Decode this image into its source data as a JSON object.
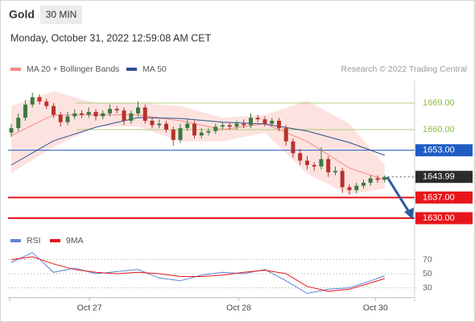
{
  "chart_data": [
    {
      "type": "candlestick",
      "title": "Gold",
      "timeframe": "30 MIN",
      "subtitle": "Monday, October 31, 2022 12:59:08 AM CET",
      "source": "Research © 2022 Trading Central",
      "legend": "top-left",
      "up_color": "#3d7a3d",
      "down_color": "#b8322c",
      "ylim": [
        1626,
        1675
      ],
      "open": [
        1659.0,
        1660.5,
        1664.0,
        1668.5,
        1671.0,
        1669.5,
        1668.0,
        1665.0,
        1662.5,
        1664.5,
        1665.5,
        1665.0,
        1666.0,
        1664.5,
        1665.5,
        1667.0,
        1666.5,
        1663.0,
        1665.5,
        1667.5,
        1663.0,
        1661.5,
        1662.0,
        1660.0,
        1656.5,
        1660.5,
        1662.0,
        1658.0,
        1659.0,
        1659.5,
        1661.0,
        1661.5,
        1661.0,
        1662.0,
        1661.5,
        1664.0,
        1663.5,
        1662.0,
        1663.0,
        1660.5,
        1656.0,
        1652.0,
        1649.5,
        1648.0,
        1647.5,
        1650.0,
        1645.5,
        1646.0,
        1640.5,
        1639.5,
        1641.0,
        1642.0,
        1643.5,
        1643.0
      ],
      "high": [
        1662.0,
        1665.5,
        1670.0,
        1672.5,
        1672.0,
        1670.5,
        1669.0,
        1666.0,
        1666.0,
        1667.0,
        1666.5,
        1667.5,
        1667.0,
        1666.5,
        1668.5,
        1668.0,
        1667.5,
        1666.5,
        1669.5,
        1668.5,
        1664.0,
        1663.5,
        1663.0,
        1661.0,
        1662.0,
        1663.5,
        1663.0,
        1660.5,
        1660.5,
        1662.0,
        1662.5,
        1662.5,
        1663.0,
        1663.5,
        1665.5,
        1665.0,
        1664.5,
        1664.0,
        1664.0,
        1661.5,
        1657.0,
        1653.5,
        1651.0,
        1649.0,
        1654.0,
        1651.0,
        1647.5,
        1647.0,
        1641.5,
        1642.0,
        1643.0,
        1644.5,
        1644.5,
        1644.5
      ],
      "low": [
        1657.5,
        1659.5,
        1663.0,
        1667.5,
        1668.5,
        1667.0,
        1664.0,
        1661.0,
        1661.5,
        1663.5,
        1664.0,
        1664.0,
        1663.0,
        1663.5,
        1664.5,
        1665.5,
        1661.5,
        1662.0,
        1664.5,
        1662.0,
        1660.5,
        1660.5,
        1659.0,
        1654.5,
        1655.5,
        1659.5,
        1657.0,
        1657.0,
        1658.0,
        1658.5,
        1660.0,
        1660.0,
        1660.0,
        1660.5,
        1660.5,
        1662.5,
        1661.0,
        1661.0,
        1659.5,
        1654.5,
        1650.5,
        1648.0,
        1646.5,
        1646.0,
        1646.5,
        1644.0,
        1644.5,
        1638.5,
        1638.0,
        1638.5,
        1640.0,
        1641.0,
        1642.0,
        1642.0
      ],
      "close": [
        1660.5,
        1664.0,
        1668.5,
        1671.0,
        1669.5,
        1668.0,
        1665.0,
        1662.5,
        1664.5,
        1665.5,
        1665.0,
        1666.0,
        1664.5,
        1665.5,
        1667.0,
        1666.5,
        1663.0,
        1665.5,
        1667.5,
        1663.0,
        1661.5,
        1662.0,
        1660.0,
        1656.5,
        1660.5,
        1662.0,
        1658.0,
        1659.0,
        1659.5,
        1661.0,
        1661.5,
        1661.0,
        1662.0,
        1661.5,
        1664.0,
        1663.5,
        1662.0,
        1663.0,
        1660.5,
        1656.0,
        1652.0,
        1649.5,
        1648.0,
        1647.5,
        1650.0,
        1645.5,
        1646.0,
        1640.5,
        1639.5,
        1641.0,
        1642.0,
        1643.5,
        1643.0,
        1644.0
      ],
      "indicators": [
        {
          "name": "MA 20 + Bollinger Bands",
          "color": "#f28b82",
          "band_color": "#fcd9d6",
          "x": [
            0,
            6,
            12,
            18,
            24,
            30,
            36,
            42,
            48,
            53
          ],
          "values": [
            1658.0,
            1665.0,
            1665.0,
            1665.0,
            1663.0,
            1660.0,
            1662.0,
            1656.0,
            1647.0,
            1643.0
          ],
          "upper": [
            1668.0,
            1673.0,
            1669.0,
            1669.0,
            1668.0,
            1664.0,
            1665.0,
            1669.8,
            1662.0,
            1648.0
          ],
          "lower": [
            1645.3,
            1654.0,
            1661.0,
            1661.0,
            1656.0,
            1656.0,
            1659.0,
            1645.0,
            1638.0,
            1640.0
          ]
        },
        {
          "name": "MA 50",
          "color": "#2f4f8f",
          "x": [
            0,
            6,
            12,
            18,
            24,
            30,
            36,
            42,
            48,
            53
          ],
          "values": [
            1648.0,
            1656.2,
            1660.8,
            1664.1,
            1663.8,
            1662.5,
            1661.9,
            1659.5,
            1655.6,
            1651.3
          ]
        }
      ],
      "levels": [
        {
          "value": 1669,
          "label": "1669.00",
          "color": "#8dbb4a",
          "style": "text"
        },
        {
          "value": 1660,
          "label": "1660.00",
          "color": "#8dbb4a",
          "style": "text"
        },
        {
          "value": 1653,
          "label": "1653.00",
          "color": "#1f5cc4",
          "style": "box"
        },
        {
          "value": 1643.99,
          "label": "1643.99",
          "color": "#2b2b2b",
          "style": "box"
        },
        {
          "value": 1637,
          "label": "1637.00",
          "color": "#e8161b",
          "style": "box"
        },
        {
          "value": 1630,
          "label": "1630.00",
          "color": "#e8161b",
          "style": "box"
        }
      ]
    },
    {
      "type": "line",
      "legend": "top-left",
      "grid": true,
      "ylim": [
        16,
        85
      ],
      "yticks": [
        70,
        50,
        30
      ],
      "xticks": [
        {
          "value": 11.1,
          "label": "Oct 27"
        },
        {
          "value": 32.3,
          "label": "Oct 28"
        },
        {
          "value": 51.7,
          "label": "Oct 30"
        }
      ],
      "x": [
        0,
        3,
        6,
        9,
        12,
        15,
        18,
        21,
        24,
        27,
        30,
        33,
        36,
        39,
        42,
        45,
        48,
        51,
        53
      ],
      "series": [
        {
          "name": "RSI",
          "color": "#5b84d6",
          "values": [
            66,
            80,
            52,
            58,
            50,
            53,
            56,
            44,
            40,
            48,
            52,
            50,
            56,
            40,
            22,
            28,
            30,
            40,
            47
          ]
        },
        {
          "name": "9MA",
          "color": "#e8161b",
          "values": [
            70,
            74,
            64,
            56,
            52,
            50,
            52,
            50,
            46,
            46,
            48,
            52,
            55,
            50,
            32,
            25,
            28,
            37,
            43
          ]
        }
      ]
    }
  ]
}
